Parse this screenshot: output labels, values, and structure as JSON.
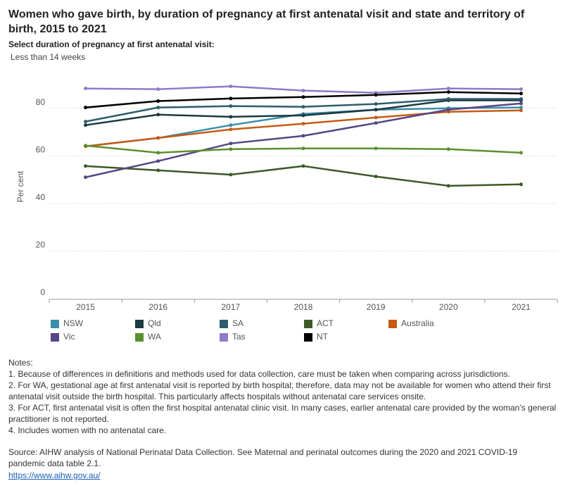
{
  "chart_data": {
    "type": "line",
    "title": "Women who gave birth, by duration of pregnancy at first antenatal visit and state and territory of birth, 2015 to 2021",
    "filter_label": "Select duration of pregnancy at first antenatal visit:",
    "filter_value": "Less than 14 weeks",
    "y_label": "Per cent",
    "categories": [
      "2015",
      "2016",
      "2017",
      "2018",
      "2019",
      "2020",
      "2021"
    ],
    "ylim": [
      0,
      95
    ],
    "yticks": [
      0,
      20,
      40,
      60,
      80
    ],
    "grid": true,
    "series": [
      {
        "name": "NSW",
        "color": "#3a8ea8",
        "values": [
          64,
          67.5,
          72.9,
          77.6,
          79.4,
          80,
          80.3
        ]
      },
      {
        "name": "Qld",
        "color": "#1c3a40",
        "values": [
          72.9,
          77.3,
          76.4,
          77,
          79.4,
          83.3,
          83.3
        ]
      },
      {
        "name": "SA",
        "color": "#2e5e6c",
        "values": [
          74.4,
          80.3,
          80.9,
          80.6,
          81.8,
          83.9,
          83.9
        ]
      },
      {
        "name": "ACT",
        "color": "#3b5a27",
        "values": [
          55.7,
          53.9,
          52.1,
          55.7,
          51.3,
          47.4,
          48
        ]
      },
      {
        "name": "Australia",
        "color": "#c65a13",
        "values": [
          64,
          67.5,
          71.1,
          73.5,
          76.1,
          78.5,
          79.1
        ]
      },
      {
        "name": "Vic",
        "color": "#574685",
        "values": [
          51,
          57.8,
          65.2,
          68.4,
          73.8,
          79.4,
          82
        ]
      },
      {
        "name": "WA",
        "color": "#5a8f2e",
        "values": [
          64.3,
          61.3,
          62.8,
          63.1,
          63.1,
          62.8,
          61.3
        ]
      },
      {
        "name": "Tas",
        "color": "#8f7ac8",
        "values": [
          88.3,
          88,
          89.2,
          87.4,
          86.5,
          88.3,
          88
        ]
      },
      {
        "name": "NT",
        "color": "#000000",
        "values": [
          80.3,
          83,
          84.1,
          84.7,
          85.6,
          86.8,
          86.2
        ]
      }
    ],
    "notes_title": "Notes:",
    "notes": [
      "1. Because of differences in definitions and methods used for data collection, care must be taken when comparing across jurisdictions.",
      "2. For WA, gestational age at first antenatal visit is reported by birth hospital; therefore, data may not be available for women who attend their first antenatal visit outside the birth hospital. This particularly affects hospitals without antenatal care services onsite.",
      "3. For ACT, first antenatal visit is often the first hospital antenatal clinic visit. In many cases, earlier antenatal care provided by the woman’s general practitioner is not reported.",
      "4. Includes women with no antenatal care."
    ],
    "source": "Source: AIHW analysis of National Perinatal Data Collection. See Maternal and perinatal outcomes during the 2020 and 2021 COVID-19 pandemic data table 2.1.",
    "link": "https://www.aihw.gov.au/"
  }
}
